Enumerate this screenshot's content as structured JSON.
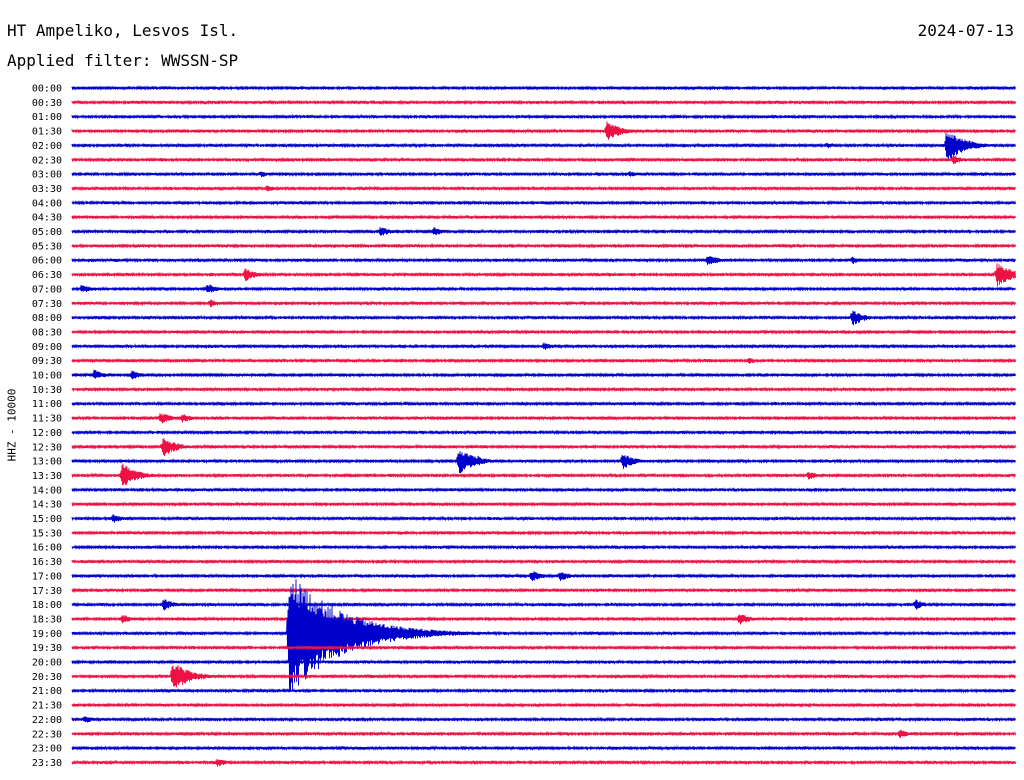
{
  "header": {
    "station": "HT Ampeliko, Lesvos Isl.",
    "filter_label": "Applied filter: WWSSN-SP",
    "date": "2024-07-13"
  },
  "colors": {
    "trace_a": "#0000cc",
    "trace_b": "#ee1144"
  },
  "chart_data": {
    "type": "line",
    "title": "",
    "ylabel": "HHZ - 10000",
    "rows": [
      "00:00",
      "00:30",
      "01:00",
      "01:30",
      "02:00",
      "02:30",
      "03:00",
      "03:30",
      "04:00",
      "04:30",
      "05:00",
      "05:30",
      "06:00",
      "06:30",
      "07:00",
      "07:30",
      "08:00",
      "08:30",
      "09:00",
      "09:30",
      "10:00",
      "10:30",
      "11:00",
      "11:30",
      "12:00",
      "12:30",
      "13:00",
      "13:30",
      "14:00",
      "14:30",
      "15:00",
      "15:30",
      "16:00",
      "16:30",
      "17:00",
      "17:30",
      "18:00",
      "18:30",
      "19:00",
      "19:30",
      "20:00",
      "20:30",
      "21:00",
      "21:30",
      "22:00",
      "22:30",
      "23:00",
      "23:30"
    ],
    "row_duration_minutes": 30,
    "trace_colors": "alternating blue / red",
    "events": [
      {
        "row": "01:30",
        "minute": 17.0,
        "amplitude": 0.75
      },
      {
        "row": "02:00",
        "minute": 24.0,
        "amplitude": 0.25
      },
      {
        "row": "02:00",
        "minute": 27.8,
        "amplitude": 1.2
      },
      {
        "row": "02:30",
        "minute": 28.0,
        "amplitude": 0.35
      },
      {
        "row": "03:00",
        "minute": 6.0,
        "amplitude": 0.25
      },
      {
        "row": "03:00",
        "minute": 17.7,
        "amplitude": 0.25
      },
      {
        "row": "03:30",
        "minute": 6.2,
        "amplitude": 0.25
      },
      {
        "row": "05:00",
        "minute": 9.8,
        "amplitude": 0.4
      },
      {
        "row": "05:00",
        "minute": 11.5,
        "amplitude": 0.35
      },
      {
        "row": "06:00",
        "minute": 20.2,
        "amplitude": 0.45
      },
      {
        "row": "06:00",
        "minute": 24.8,
        "amplitude": 0.3
      },
      {
        "row": "06:30",
        "minute": 5.5,
        "amplitude": 0.5
      },
      {
        "row": "06:30",
        "minute": 29.4,
        "amplitude": 0.9
      },
      {
        "row": "07:00",
        "minute": 4.3,
        "amplitude": 0.4
      },
      {
        "row": "07:00",
        "minute": 0.3,
        "amplitude": 0.35
      },
      {
        "row": "07:30",
        "minute": 4.4,
        "amplitude": 0.3
      },
      {
        "row": "08:00",
        "minute": 24.8,
        "amplitude": 0.6
      },
      {
        "row": "09:00",
        "minute": 15.0,
        "amplitude": 0.3
      },
      {
        "row": "09:30",
        "minute": 21.5,
        "amplitude": 0.25
      },
      {
        "row": "10:00",
        "minute": 0.7,
        "amplitude": 0.4
      },
      {
        "row": "10:00",
        "minute": 1.9,
        "amplitude": 0.4
      },
      {
        "row": "11:30",
        "minute": 2.8,
        "amplitude": 0.45
      },
      {
        "row": "11:30",
        "minute": 3.5,
        "amplitude": 0.35
      },
      {
        "row": "12:30",
        "minute": 2.9,
        "amplitude": 0.75
      },
      {
        "row": "13:00",
        "minute": 12.3,
        "amplitude": 0.95
      },
      {
        "row": "13:00",
        "minute": 12.9,
        "amplitude": 0.4
      },
      {
        "row": "13:00",
        "minute": 17.5,
        "amplitude": 0.6
      },
      {
        "row": "13:30",
        "minute": 1.6,
        "amplitude": 0.9
      },
      {
        "row": "13:30",
        "minute": 23.4,
        "amplitude": 0.35
      },
      {
        "row": "15:00",
        "minute": 1.3,
        "amplitude": 0.35
      },
      {
        "row": "17:00",
        "minute": 14.6,
        "amplitude": 0.45
      },
      {
        "row": "17:00",
        "minute": 15.5,
        "amplitude": 0.4
      },
      {
        "row": "18:00",
        "minute": 2.9,
        "amplitude": 0.45
      },
      {
        "row": "18:00",
        "minute": 26.8,
        "amplitude": 0.4
      },
      {
        "row": "18:30",
        "minute": 1.6,
        "amplitude": 0.35
      },
      {
        "row": "18:30",
        "minute": 21.2,
        "amplitude": 0.45
      },
      {
        "row": "19:00",
        "minute": 6.9,
        "amplitude": 4.5
      },
      {
        "row": "19:00",
        "minute": 9.8,
        "amplitude": 0.3
      },
      {
        "row": "20:30",
        "minute": 3.2,
        "amplitude": 1.1
      },
      {
        "row": "22:00",
        "minute": 0.4,
        "amplitude": 0.3
      },
      {
        "row": "22:30",
        "minute": 26.3,
        "amplitude": 0.35
      },
      {
        "row": "23:30",
        "minute": 4.6,
        "amplitude": 0.35
      }
    ]
  }
}
